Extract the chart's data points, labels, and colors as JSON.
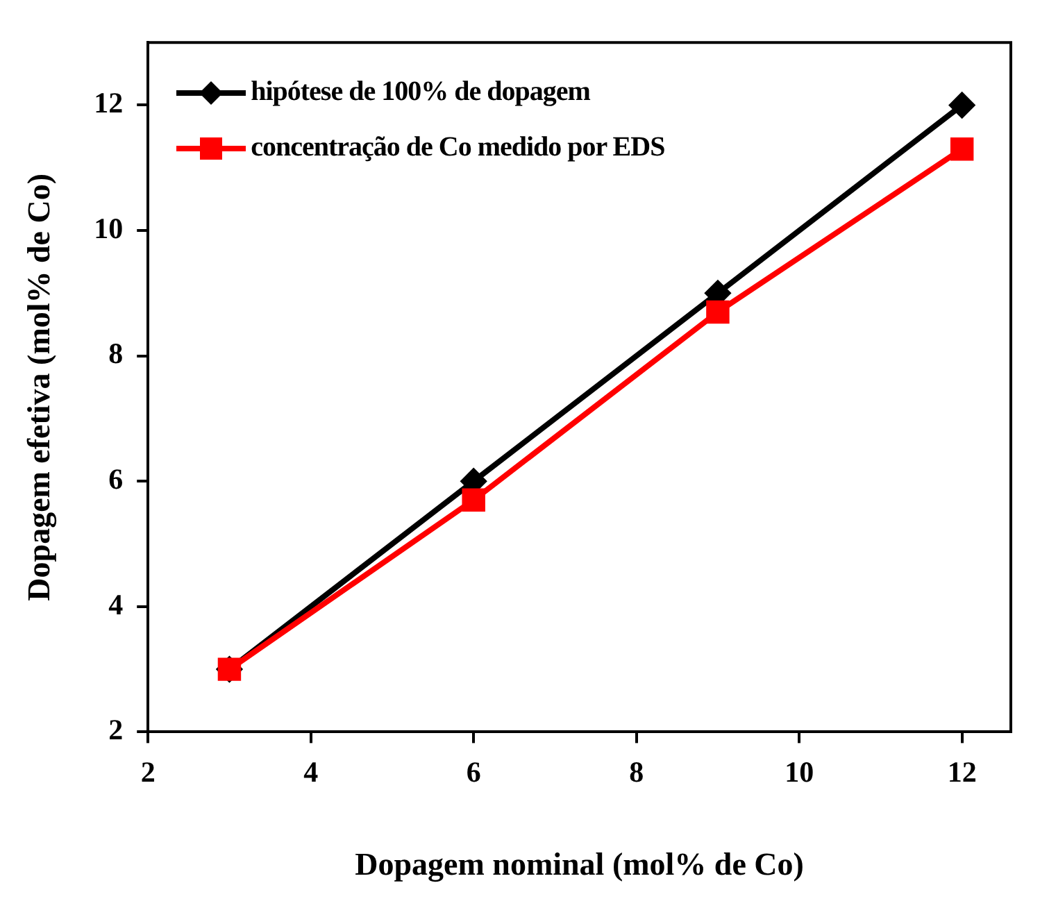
{
  "chart_data": {
    "type": "line",
    "xlabel": "Dopagem nominal (mol% de Co)",
    "ylabel": "Dopagem efetiva (mol% de Co)",
    "x": [
      3,
      6,
      9,
      12
    ],
    "xlim": [
      2,
      12.6
    ],
    "xticks": [
      2,
      4,
      6,
      8,
      10,
      12
    ],
    "ylim": [
      2,
      13
    ],
    "yticks": [
      2,
      4,
      6,
      8,
      10,
      12
    ],
    "grid": false,
    "legend": "top left",
    "series": [
      {
        "name": "hipótese de 100% de dopagem",
        "color": "#000000",
        "marker": "diamond",
        "values": [
          3,
          6,
          9,
          12
        ]
      },
      {
        "name": "concentração de Co medido por EDS",
        "color": "#ff0000",
        "marker": "square",
        "values": [
          3,
          5.7,
          8.7,
          11.3
        ]
      }
    ]
  }
}
